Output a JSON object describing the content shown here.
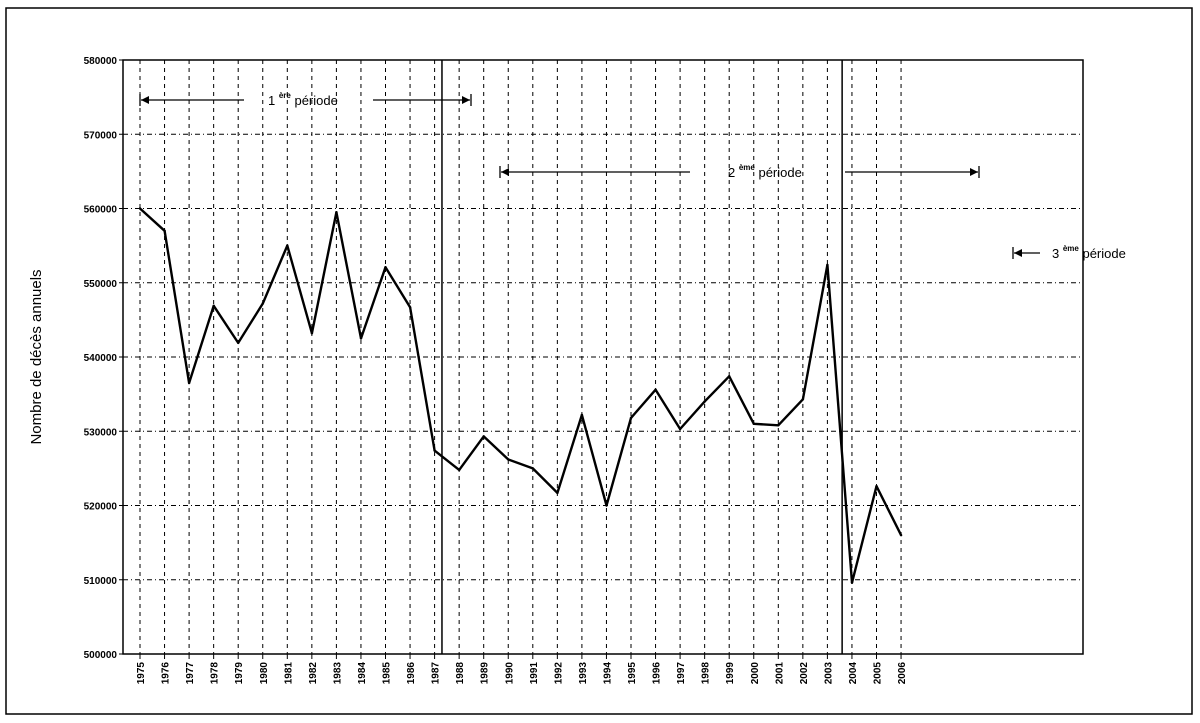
{
  "chart_data": {
    "type": "line",
    "ylabel": "Nombre de décès annuels",
    "xlabel": "",
    "ylim": [
      500000,
      580000
    ],
    "grid": true,
    "y_ticks": [
      "500000",
      "510000",
      "520000",
      "530000",
      "540000",
      "550000",
      "560000",
      "570000",
      "580000"
    ],
    "categories": [
      "1975",
      "1976",
      "1977",
      "1978",
      "1979",
      "1980",
      "1981",
      "1982",
      "1983",
      "1984",
      "1985",
      "1986",
      "1987",
      "1988",
      "1989",
      "1990",
      "1991",
      "1992",
      "1993",
      "1994",
      "1995",
      "1996",
      "1997",
      "1998",
      "1999",
      "2000",
      "2001",
      "2002",
      "2003",
      "2004",
      "2005",
      "2006"
    ],
    "series": [
      {
        "values": [
          560000,
          557000,
          536500,
          546900,
          541900,
          547200,
          555000,
          543200,
          559500,
          542500,
          552100,
          546700,
          527400,
          524800,
          529300,
          526200,
          525000,
          521700,
          532200,
          520000,
          531800,
          535600,
          530300,
          534000,
          537400,
          531000,
          530800,
          534300,
          552400,
          509600,
          522600,
          516000
        ]
      }
    ],
    "periods": [
      {
        "number": "1",
        "suffix": "ère",
        "word": "période"
      },
      {
        "number": "2",
        "suffix": "ème",
        "word": "période"
      },
      {
        "number": "3",
        "suffix": "ème",
        "word": "période"
      }
    ],
    "colors": {
      "line": "#000000",
      "grid": "#000000",
      "background": "#ffffff"
    }
  }
}
